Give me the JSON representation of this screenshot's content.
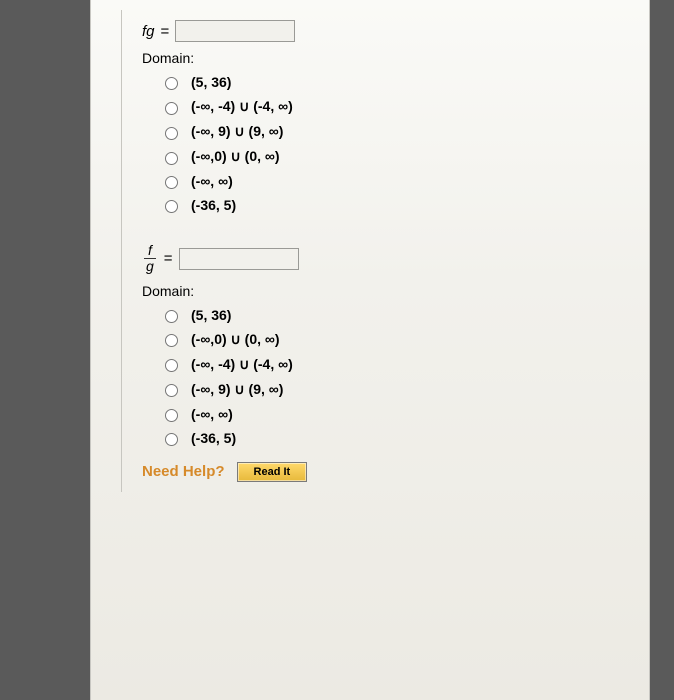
{
  "q1": {
    "label_html": "fg",
    "equals": "=",
    "answer_value": "",
    "domain_label": "Domain:",
    "options": [
      "(5, 36)",
      "(-∞, -4) ∪ (-4, ∞)",
      "(-∞, 9) ∪ (9, ∞)",
      "(-∞,0) ∪ (0, ∞)",
      "(-∞, ∞)",
      "(-36, 5)"
    ]
  },
  "q2": {
    "frac_num": "f",
    "frac_den": "g",
    "equals": "=",
    "answer_value": "",
    "domain_label": "Domain:",
    "options": [
      "(5, 36)",
      "(-∞,0) ∪ (0, ∞)",
      "(-∞, -4) ∪ (-4, ∞)",
      "(-∞, 9) ∪ (9, ∞)",
      "(-∞, ∞)",
      "(-36, 5)"
    ]
  },
  "help": {
    "label": "Need Help?",
    "button": "Read It"
  }
}
